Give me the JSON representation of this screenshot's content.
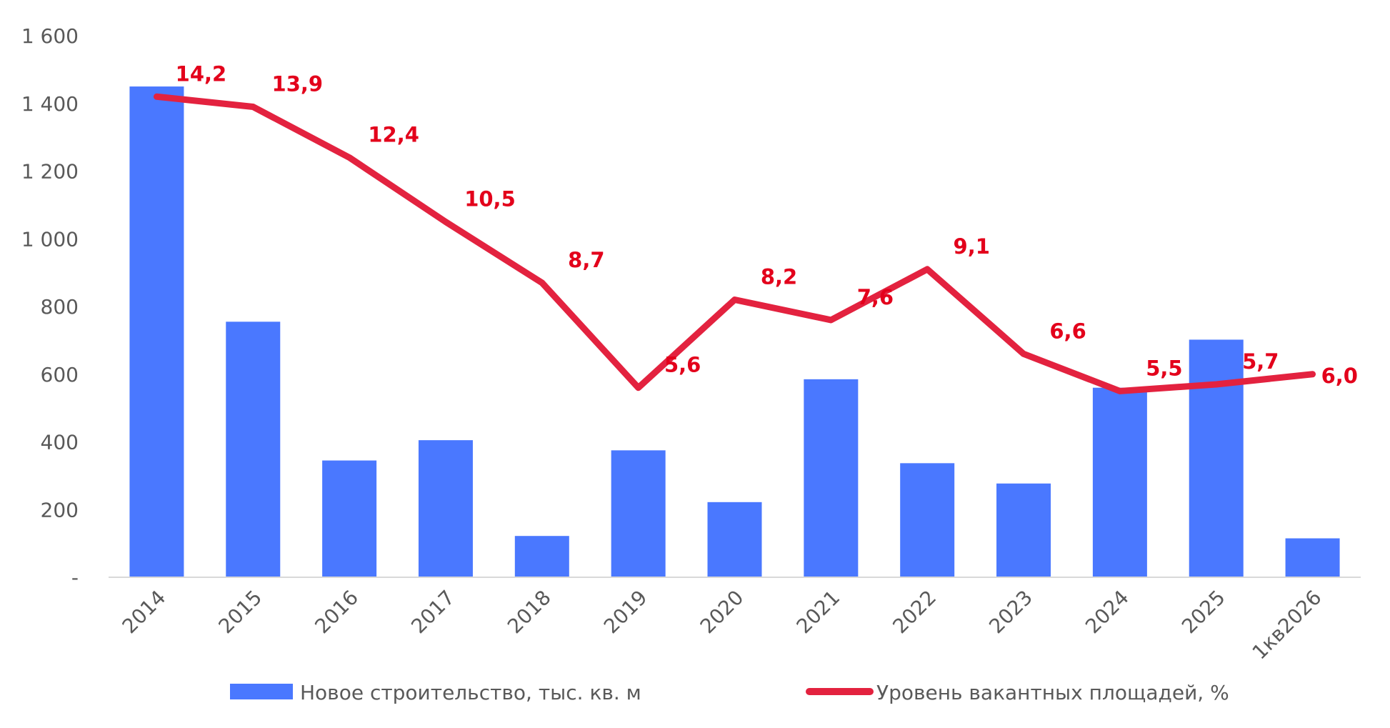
{
  "chart_data": {
    "type": "bar+line",
    "categories": [
      "2014",
      "2015",
      "2016",
      "2017",
      "2018",
      "2019",
      "2020",
      "2021",
      "2022",
      "2023",
      "2024",
      "2025",
      "1кв2026"
    ],
    "series": [
      {
        "name": "Новое строительство, тыс. кв. м",
        "type": "bar",
        "axis": "left",
        "color": "#4a78ff",
        "values": [
          1450,
          755,
          345,
          405,
          122,
          375,
          222,
          585,
          337,
          277,
          560,
          702,
          115
        ]
      },
      {
        "name": "Уровень вакантных площадей, %",
        "type": "line",
        "axis": "right",
        "color": "#e3223f",
        "values": [
          14.2,
          13.9,
          12.4,
          10.5,
          8.7,
          5.6,
          8.2,
          7.6,
          9.1,
          6.6,
          5.5,
          5.7,
          6.0
        ],
        "labels": [
          "14,2",
          "13,9",
          "12,4",
          "10,5",
          "8,7",
          "5,6",
          "8,2",
          "7,6",
          "9,1",
          "6,6",
          "5,5",
          "5,7",
          "6,0"
        ]
      }
    ],
    "y_left": {
      "ylim": [
        0,
        1600
      ],
      "ticks": [
        0,
        200,
        400,
        600,
        800,
        1000,
        1200,
        1400,
        1600
      ],
      "tick_labels": [
        "-",
        "200",
        "400",
        "600",
        "800",
        "1 000",
        "1 200",
        "1 400",
        "1 600"
      ]
    },
    "y_right": {
      "ylim": [
        0,
        16
      ]
    },
    "grid": false,
    "legend_position": "bottom"
  }
}
